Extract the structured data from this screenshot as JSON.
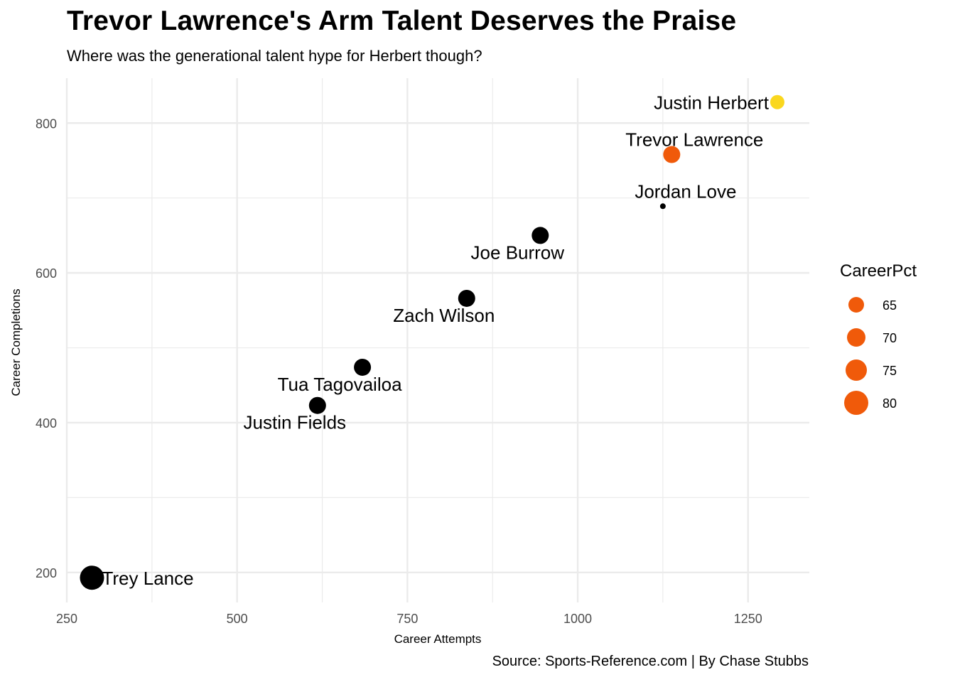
{
  "title": "Trevor Lawrence's Arm Talent Deserves the Praise",
  "subtitle": "Where was the generational talent hype for Herbert though?",
  "caption": "Source: Sports-Reference.com | By Chase Stubbs",
  "chart_data": {
    "type": "scatter",
    "xlabel": "Career Attempts",
    "ylabel": "Career Completions",
    "xlim": [
      250,
      1340
    ],
    "ylim": [
      160,
      860
    ],
    "x_ticks": [
      250,
      500,
      750,
      1000,
      1250
    ],
    "y_ticks": [
      200,
      400,
      600,
      800
    ],
    "grid": true,
    "colors": {
      "black": "#000000",
      "orange": "#F05A0A",
      "yellow": "#FAD71E",
      "grid": "#EBEBEB"
    },
    "points": [
      {
        "name": "Justin Herbert",
        "x": 1293,
        "y": 828,
        "color": "#FAD71E",
        "size": 10,
        "label_pos": "left"
      },
      {
        "name": "Trevor Lawrence",
        "x": 1138,
        "y": 758,
        "color": "#F05A0A",
        "size": 12,
        "label_pos": "above"
      },
      {
        "name": "Jordan Love",
        "x": 1125,
        "y": 689,
        "color": "#000000",
        "size": 4,
        "label_pos": "above"
      },
      {
        "name": "Joe Burrow",
        "x": 945,
        "y": 650,
        "color": "#000000",
        "size": 12,
        "label_pos": "below-left"
      },
      {
        "name": "Zach Wilson",
        "x": 837,
        "y": 566,
        "color": "#000000",
        "size": 12,
        "label_pos": "below-left"
      },
      {
        "name": "Tua Tagovailoa",
        "x": 684,
        "y": 474,
        "color": "#000000",
        "size": 12,
        "label_pos": "below"
      },
      {
        "name": "Justin Fields",
        "x": 618,
        "y": 423,
        "color": "#000000",
        "size": 12,
        "label_pos": "below-left"
      },
      {
        "name": "Trey Lance",
        "x": 287,
        "y": 193,
        "color": "#000000",
        "size": 17,
        "label_pos": "right"
      }
    ],
    "legend": {
      "title": "CareerPct",
      "position": "right",
      "color": "#F05A0A",
      "entries": [
        {
          "label": "65",
          "value": 65
        },
        {
          "label": "70",
          "value": 70
        },
        {
          "label": "75",
          "value": 75
        },
        {
          "label": "80",
          "value": 80
        }
      ]
    }
  }
}
